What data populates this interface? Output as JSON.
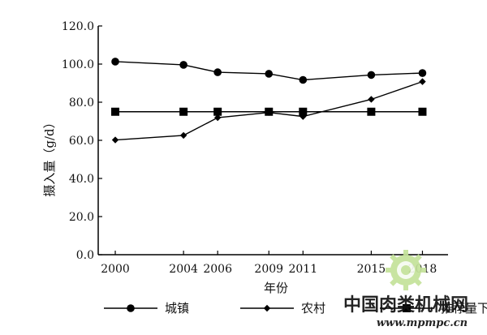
{
  "chart_data": {
    "type": "line",
    "x": [
      2000,
      2004,
      2006,
      2009,
      2011,
      2015,
      2018
    ],
    "x_tick_labels": [
      "2000",
      "2004",
      "2006",
      "2009",
      "2011",
      "2015",
      "2018"
    ],
    "y_ticks": [
      0.0,
      20.0,
      40.0,
      60.0,
      80.0,
      100.0,
      120.0
    ],
    "y_tick_labels": [
      "0.0",
      "20.0",
      "40.0",
      "60.0",
      "80.0",
      "100.0",
      "120.0"
    ],
    "ylim": [
      0,
      120
    ],
    "xlabel": "年份",
    "ylabel": "摄入量（g/d）",
    "grid": false,
    "legend_position": "bottom",
    "series": [
      {
        "name": "城镇",
        "marker": "circle",
        "color": "#000000",
        "values": [
          101.3,
          99.6,
          95.7,
          94.9,
          91.7,
          94.3,
          95.3
        ]
      },
      {
        "name": "农村",
        "marker": "diamond",
        "color": "#000000",
        "values": [
          60.2,
          62.6,
          71.9,
          74.6,
          72.5,
          81.5,
          90.8
        ]
      },
      {
        "name": "推荐量下限",
        "marker": "square",
        "color": "#000000",
        "values": [
          75.0,
          75.0,
          75.0,
          75.0,
          75.0,
          75.0,
          75.0
        ]
      }
    ]
  },
  "watermark": {
    "text": "中国肉类机械网",
    "url": "www.mpmpc.cn",
    "logo_icon": "cog-wheel-logo-icon",
    "colors": {
      "text": "#b8dd8a",
      "url": "#cfe8a8",
      "logo": "#c4e29a"
    }
  }
}
